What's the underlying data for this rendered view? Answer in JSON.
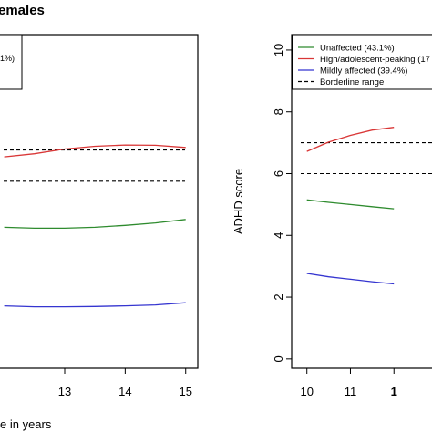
{
  "panel_title": "emales",
  "chart_data": [
    {
      "type": "line",
      "xlabel": "e in years",
      "ylabel": "",
      "x_ticks": [
        13,
        14,
        15
      ],
      "xlim": [
        11.9,
        15.2
      ],
      "ylim": [
        0,
        10.7
      ],
      "grid": false,
      "legend_entries": [
        "1%)"
      ],
      "series": [
        {
          "color": "#d93636",
          "x": [
            12.0,
            12.5,
            13.0,
            13.5,
            14.0,
            14.5,
            15.0
          ],
          "y": [
            6.78,
            6.88,
            7.03,
            7.12,
            7.16,
            7.15,
            7.08
          ]
        },
        {
          "color": "#2e8b2e",
          "x": [
            12.0,
            12.5,
            13.0,
            13.5,
            14.0,
            14.5,
            15.0
          ],
          "y": [
            4.52,
            4.49,
            4.49,
            4.52,
            4.58,
            4.66,
            4.77
          ]
        },
        {
          "color": "#3535d0",
          "x": [
            12.0,
            12.5,
            13.0,
            13.5,
            14.0,
            14.5,
            15.0
          ],
          "y": [
            2.0,
            1.97,
            1.97,
            1.98,
            2.0,
            2.03,
            2.1
          ]
        }
      ],
      "reference_lines": {
        "color": "#000000",
        "y": [
          7.0,
          6.0
        ]
      }
    },
    {
      "type": "line",
      "xlabel": "",
      "ylabel": "ADHD score",
      "x_ticks": [
        10,
        11,
        "1"
      ],
      "y_ticks": [
        0,
        2,
        4,
        6,
        8,
        10
      ],
      "xlim": [
        9.65,
        13
      ],
      "ylim": [
        -0.3,
        10.5
      ],
      "grid": false,
      "legend_placement": "top-right",
      "legend_entries": [
        {
          "label": "Unaffected (43.1%)",
          "color": "#2e8b2e",
          "style": "solid"
        },
        {
          "label": "High/adolescent-peaking (17",
          "color": "#d93636",
          "style": "solid"
        },
        {
          "label": "Mildly affected (39.4%)",
          "color": "#3535d0",
          "style": "solid"
        },
        {
          "label": "Borderline range",
          "color": "#000000",
          "style": "dashed"
        }
      ],
      "series": [
        {
          "color": "#d93636",
          "x": [
            10.0,
            10.5,
            11.0,
            11.5,
            12.0
          ],
          "y": [
            6.72,
            7.02,
            7.24,
            7.41,
            7.5
          ]
        },
        {
          "color": "#2e8b2e",
          "x": [
            10.0,
            10.5,
            11.0,
            11.5,
            12.0
          ],
          "y": [
            5.15,
            5.07,
            5.0,
            4.93,
            4.86
          ]
        },
        {
          "color": "#3535d0",
          "x": [
            10.0,
            10.5,
            11.0,
            11.5,
            12.0
          ],
          "y": [
            2.77,
            2.66,
            2.58,
            2.5,
            2.43
          ]
        }
      ],
      "reference_lines": {
        "color": "#000000",
        "y": [
          7.0,
          6.0
        ]
      }
    }
  ]
}
